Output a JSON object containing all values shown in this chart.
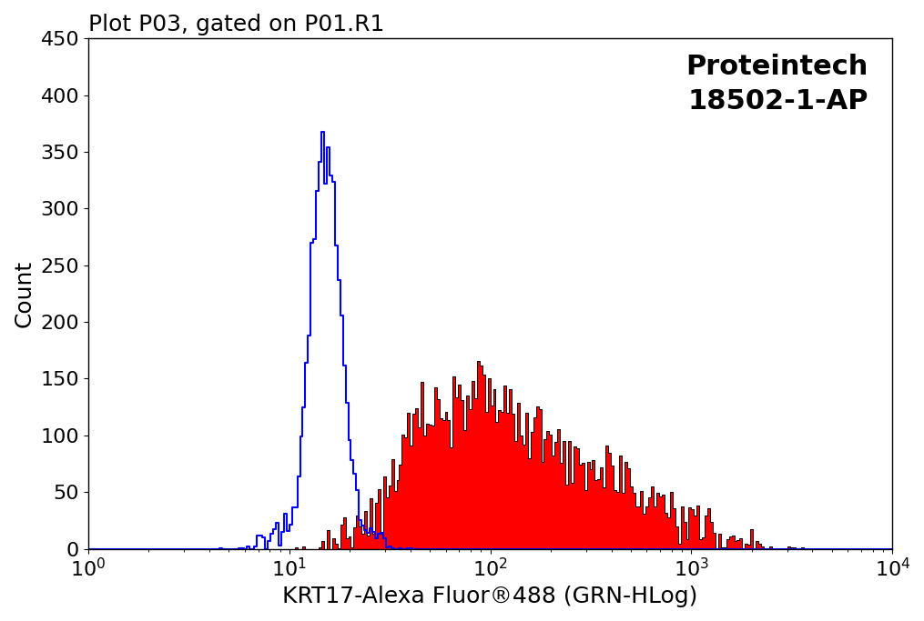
{
  "title": "Plot P03, gated on P01.R1",
  "xlabel": "KRT17-Alexa Fluor®488 (GRN-HLog)",
  "ylabel": "Count",
  "annotation_line1": "Proteintech",
  "annotation_line2": "18502-1-AP",
  "ylim": [
    0,
    450
  ],
  "yticks": [
    0,
    50,
    100,
    150,
    200,
    250,
    300,
    350,
    400,
    450
  ],
  "background_color": "#ffffff",
  "blue_color": "#0000ff",
  "red_color": "#ff0000",
  "black_color": "#000000",
  "title_fontsize": 18,
  "label_fontsize": 18,
  "annotation_fontsize": 22,
  "tick_fontsize": 16,
  "blue_peak_log": 1.18,
  "blue_sigma_log": 0.07,
  "blue_peak_count": 360,
  "red_peak_log": 1.85,
  "red_sigma_log": 0.55,
  "red_peak_count": 150
}
